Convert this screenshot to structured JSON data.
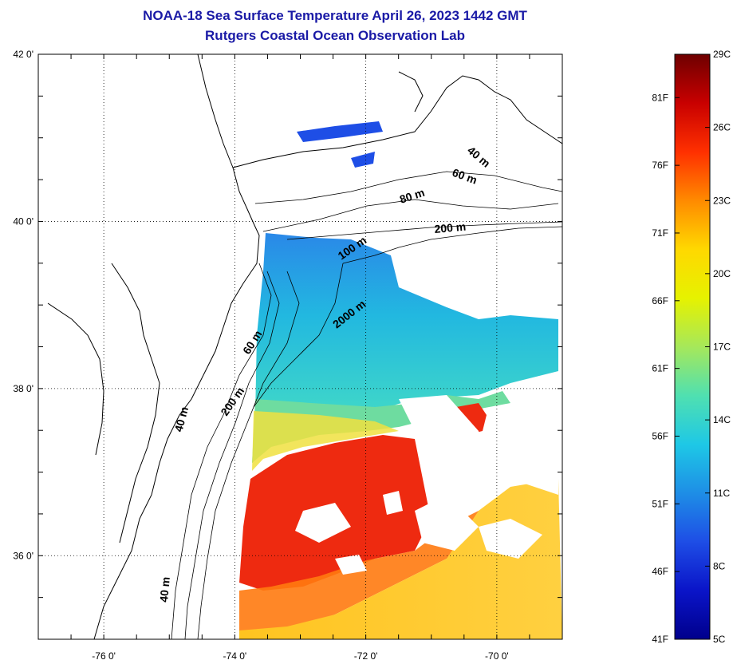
{
  "header": {
    "title": "NOAA-18 Sea Surface Temperature April 26, 2023 1442 GMT",
    "subtitle": "Rutgers Coastal Ocean Observation Lab"
  },
  "map": {
    "lat_ticks": [
      {
        "value": 42,
        "label": "42 0'"
      },
      {
        "value": 40,
        "label": "40 0'"
      },
      {
        "value": 38,
        "label": "38 0'"
      },
      {
        "value": 36,
        "label": "36 0'"
      }
    ],
    "lon_ticks": [
      {
        "value": -76,
        "label": "-76 0'"
      },
      {
        "value": -74,
        "label": "-74 0'"
      },
      {
        "value": -72,
        "label": "-72 0'"
      },
      {
        "value": -70,
        "label": "-70 0'"
      }
    ],
    "lon_range": [
      -77,
      -69
    ],
    "lat_range": [
      35,
      42
    ],
    "grid": "dotted",
    "contour_labels": [
      "40 m",
      "60 m",
      "80 m",
      "200 m",
      "100 m",
      "2000 m",
      "60 m",
      "200 m",
      "40 m",
      "40 m"
    ]
  },
  "colorbar": {
    "fahrenheit_labels": [
      "81F",
      "76F",
      "71F",
      "66F",
      "61F",
      "56F",
      "51F",
      "46F",
      "41F"
    ],
    "celsius_labels": [
      "29C",
      "26C",
      "23C",
      "20C",
      "17C",
      "14C",
      "11C",
      "8C",
      "5C"
    ],
    "colors": [
      "#6e0000",
      "#c80000",
      "#ff3000",
      "#ff8a00",
      "#ffd800",
      "#e6f200",
      "#a6e85a",
      "#50e0b0",
      "#1ec8e6",
      "#1e8ee6",
      "#1e4ee6",
      "#0a14c8",
      "#00008c"
    ]
  }
}
